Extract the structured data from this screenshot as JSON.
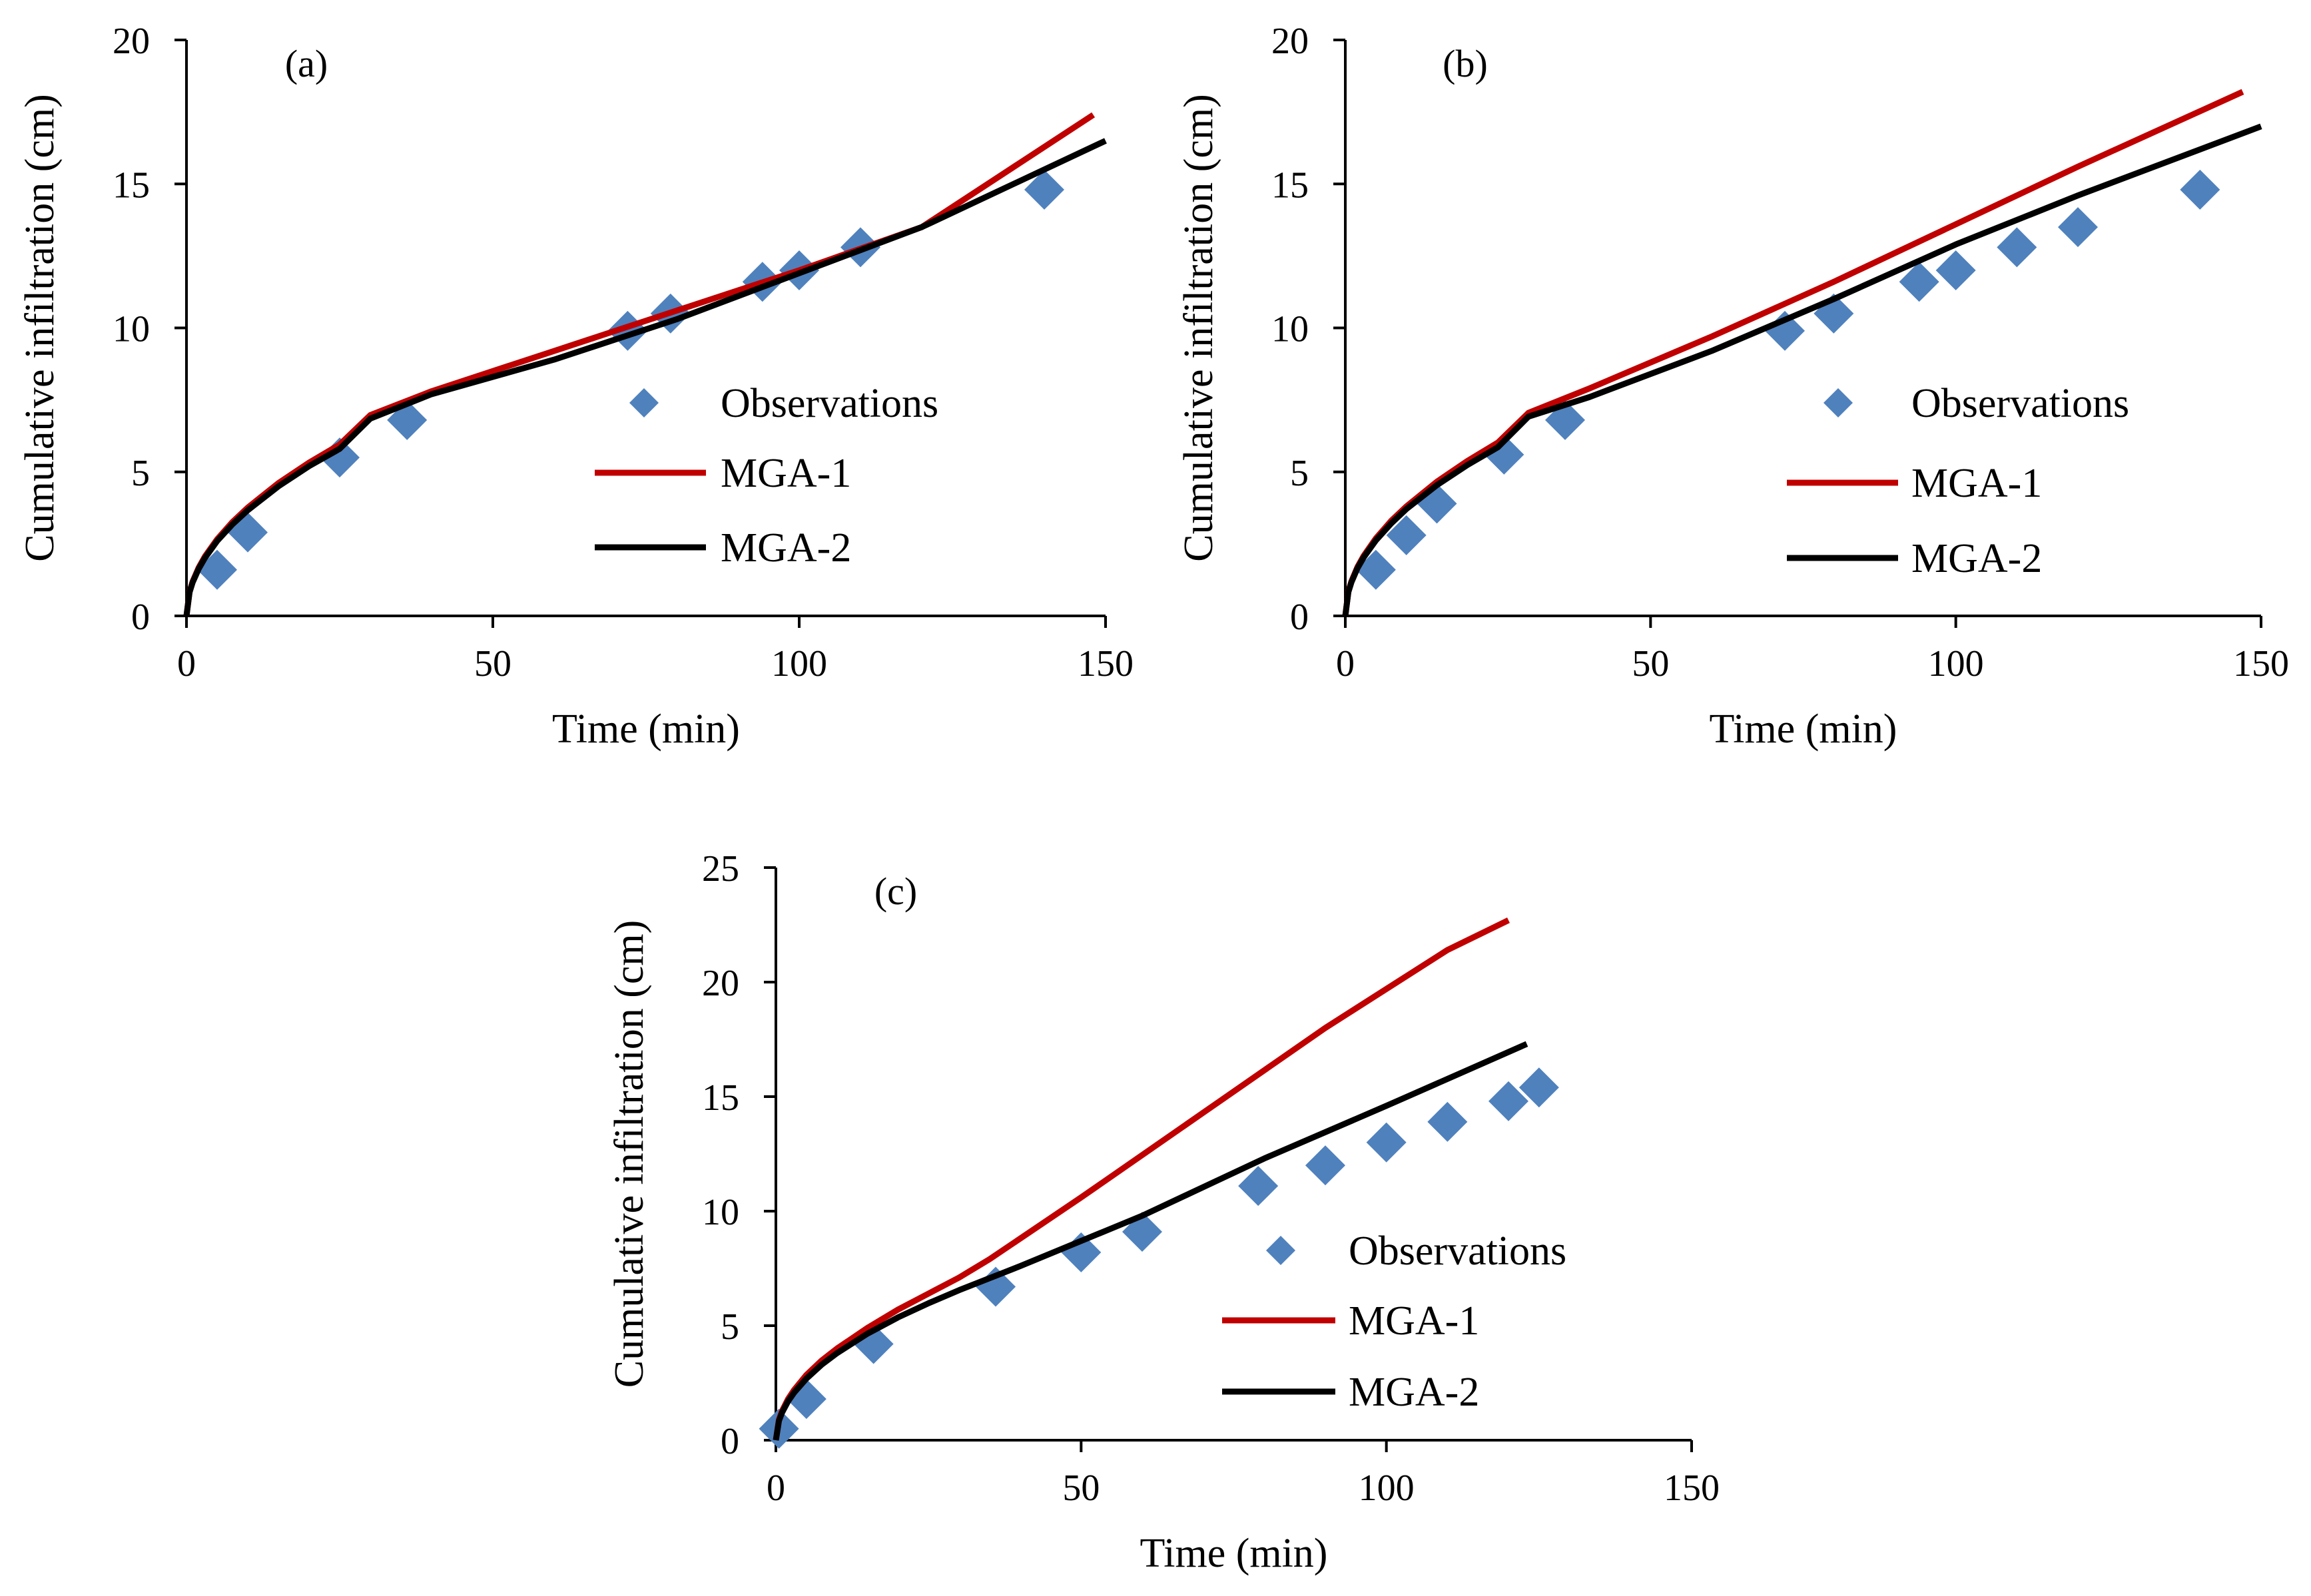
{
  "colors": {
    "observations": "#4F81BD",
    "mga1": "#C00000",
    "mga2": "#000000",
    "axis": "#000000"
  },
  "chart_data": [
    {
      "type": "scatter",
      "panel_label": "(a)",
      "xlabel": "Time (min)",
      "ylabel": "Cumulative infiltration (cm)",
      "xlim": [
        0,
        150
      ],
      "ylim": [
        0,
        20
      ],
      "xticks": [
        0,
        50,
        100,
        150
      ],
      "yticks": [
        0,
        5,
        10,
        15,
        20
      ],
      "grid": false,
      "legend_placement": "middle-right",
      "series": [
        {
          "name": "Observations",
          "kind": "markers",
          "x": [
            5,
            10,
            25,
            36,
            72,
            79,
            94,
            100,
            110,
            140
          ],
          "y": [
            1.6,
            2.9,
            5.5,
            6.8,
            9.9,
            10.5,
            11.6,
            12.0,
            12.8,
            14.8
          ]
        },
        {
          "name": "MGA-1",
          "kind": "line",
          "x": [
            0,
            0.5,
            1,
            2,
            3,
            5,
            7.5,
            10,
            15,
            20,
            25,
            30,
            40,
            60,
            80,
            100,
            120,
            148
          ],
          "y": [
            0,
            0.84,
            1.19,
            1.68,
            2.06,
            2.66,
            3.26,
            3.76,
            4.61,
            5.32,
            5.95,
            6.97,
            7.8,
            9.2,
            10.6,
            12.0,
            13.5,
            17.4
          ]
        },
        {
          "name": "MGA-2",
          "kind": "line",
          "x": [
            0,
            0.5,
            1,
            2,
            3,
            5,
            7.5,
            10,
            15,
            20,
            25,
            30,
            40,
            60,
            80,
            100,
            120,
            150
          ],
          "y": [
            0,
            0.82,
            1.16,
            1.64,
            2.01,
            2.6,
            3.18,
            3.67,
            4.5,
            5.2,
            5.8,
            6.85,
            7.7,
            8.9,
            10.3,
            11.9,
            13.5,
            16.5
          ]
        }
      ]
    },
    {
      "type": "scatter",
      "panel_label": "(b)",
      "xlabel": "Time (min)",
      "ylabel": "Cumulative infiltration (cm)",
      "xlim": [
        0,
        150
      ],
      "ylim": [
        0,
        20
      ],
      "xticks": [
        0,
        50,
        100,
        150
      ],
      "yticks": [
        0,
        5,
        10,
        15,
        20
      ],
      "grid": false,
      "legend_placement": "middle-right",
      "series": [
        {
          "name": "Observations",
          "kind": "markers",
          "x": [
            5,
            10,
            15,
            26,
            36,
            72,
            80,
            94,
            100,
            110,
            120,
            140
          ],
          "y": [
            1.6,
            2.8,
            3.9,
            5.6,
            6.8,
            9.9,
            10.5,
            11.6,
            12.0,
            12.8,
            13.5,
            14.8
          ]
        },
        {
          "name": "MGA-1",
          "kind": "line",
          "x": [
            0,
            0.5,
            1,
            2,
            3,
            5,
            7.5,
            10,
            15,
            20,
            25,
            30,
            40,
            60,
            80,
            100,
            120,
            147
          ],
          "y": [
            0,
            0.85,
            1.2,
            1.7,
            2.08,
            2.69,
            3.3,
            3.8,
            4.66,
            5.38,
            6.02,
            7.05,
            7.9,
            9.7,
            11.6,
            13.6,
            15.6,
            18.2
          ]
        },
        {
          "name": "MGA-2",
          "kind": "line",
          "x": [
            0,
            0.5,
            1,
            2,
            3,
            5,
            7.5,
            10,
            15,
            20,
            25,
            30,
            40,
            60,
            80,
            100,
            120,
            150
          ],
          "y": [
            0,
            0.83,
            1.17,
            1.66,
            2.03,
            2.62,
            3.21,
            3.71,
            4.54,
            5.24,
            5.86,
            6.92,
            7.6,
            9.2,
            11.0,
            12.9,
            14.6,
            17.0
          ]
        }
      ]
    },
    {
      "type": "scatter",
      "panel_label": "(c)",
      "xlabel": "Time (min)",
      "ylabel": "Cumulative infiltration (cm)",
      "xlim": [
        0,
        150
      ],
      "ylim": [
        0,
        25
      ],
      "xticks": [
        0,
        50,
        100,
        150
      ],
      "yticks": [
        0,
        5,
        10,
        15,
        20,
        25
      ],
      "grid": false,
      "legend_placement": "middle-right",
      "series": [
        {
          "name": "Observations",
          "kind": "markers",
          "x": [
            0.5,
            5,
            16,
            36,
            50,
            60,
            79,
            90,
            100,
            110,
            120,
            125
          ],
          "y": [
            0.5,
            1.8,
            4.2,
            6.7,
            8.2,
            9.1,
            11.1,
            12.0,
            13.0,
            13.9,
            14.8,
            15.4
          ]
        },
        {
          "name": "MGA-1",
          "kind": "line",
          "x": [
            0,
            0.5,
            1,
            2,
            3,
            5,
            7.5,
            10,
            15,
            20,
            25,
            30,
            35,
            50,
            70,
            90,
            110,
            120
          ],
          "y": [
            0,
            0.9,
            1.27,
            1.8,
            2.2,
            2.85,
            3.48,
            4.0,
            4.9,
            5.7,
            6.4,
            7.1,
            7.9,
            10.6,
            14.3,
            18.0,
            21.4,
            22.7
          ]
        },
        {
          "name": "MGA-2",
          "kind": "line",
          "x": [
            0,
            0.5,
            1,
            2,
            3,
            5,
            7.5,
            10,
            15,
            20,
            25,
            30,
            40,
            60,
            80,
            100,
            123
          ],
          "y": [
            0,
            0.85,
            1.2,
            1.7,
            2.08,
            2.69,
            3.3,
            3.8,
            4.65,
            5.36,
            5.98,
            6.55,
            7.6,
            9.8,
            12.3,
            14.6,
            17.3
          ]
        }
      ]
    }
  ]
}
